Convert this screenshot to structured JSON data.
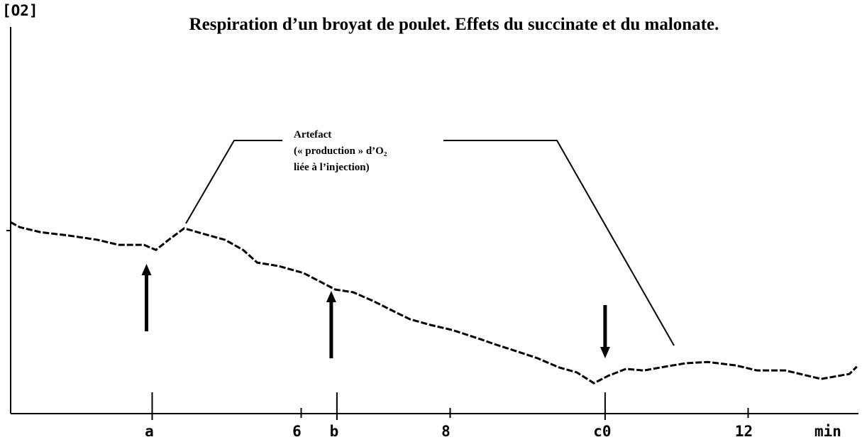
{
  "chart_data": {
    "type": "line",
    "title": "Respiration d’un broyat de poulet. Effets du succinate et du malonate.",
    "y_label": "[O2]",
    "x_label": "min",
    "xlim": [
      2.1,
      13.5
    ],
    "ylim": [
      0,
      100
    ],
    "xticks": [
      6,
      8,
      12
    ],
    "series": [
      {
        "color": "#000000",
        "x": [
          2.1,
          2.22,
          2.5,
          2.89,
          3.27,
          3.55,
          3.89,
          4.05,
          4.22,
          4.43,
          4.7,
          4.98,
          5.22,
          5.41,
          5.7,
          6.03,
          6.22,
          6.46,
          6.7,
          6.98,
          7.27,
          7.46,
          7.74,
          8.03,
          8.41,
          8.6,
          8.89,
          9.17,
          9.46,
          9.7,
          9.93,
          10.12,
          10.36,
          10.6,
          10.89,
          11.17,
          11.46,
          11.84,
          12.12,
          12.5,
          12.98,
          13.36,
          13.46
        ],
        "values": [
          49.7,
          48.4,
          47.1,
          46.2,
          45.1,
          43.8,
          43.8,
          42.5,
          45.1,
          48.1,
          46.6,
          45.1,
          42.5,
          39.2,
          38.3,
          36.5,
          34.6,
          32.2,
          31.5,
          29.1,
          26.3,
          24.5,
          23.0,
          21.7,
          19.3,
          18.0,
          16.2,
          14.4,
          12.0,
          10.7,
          7.9,
          9.8,
          11.6,
          11.2,
          12.2,
          13.1,
          13.4,
          12.5,
          11.2,
          11.2,
          9.0,
          10.3,
          12.2
        ]
      }
    ],
    "events": [
      {
        "label": "a",
        "x": 4.0,
        "arrow": "up"
      },
      {
        "label": "b",
        "x": 6.48,
        "arrow": "up"
      },
      {
        "label": "c0",
        "x": 10.08,
        "arrow": "down"
      }
    ],
    "annotation": [
      "Artefact",
      "(« production » d’O₂",
      "liée à l’injection)"
    ]
  }
}
